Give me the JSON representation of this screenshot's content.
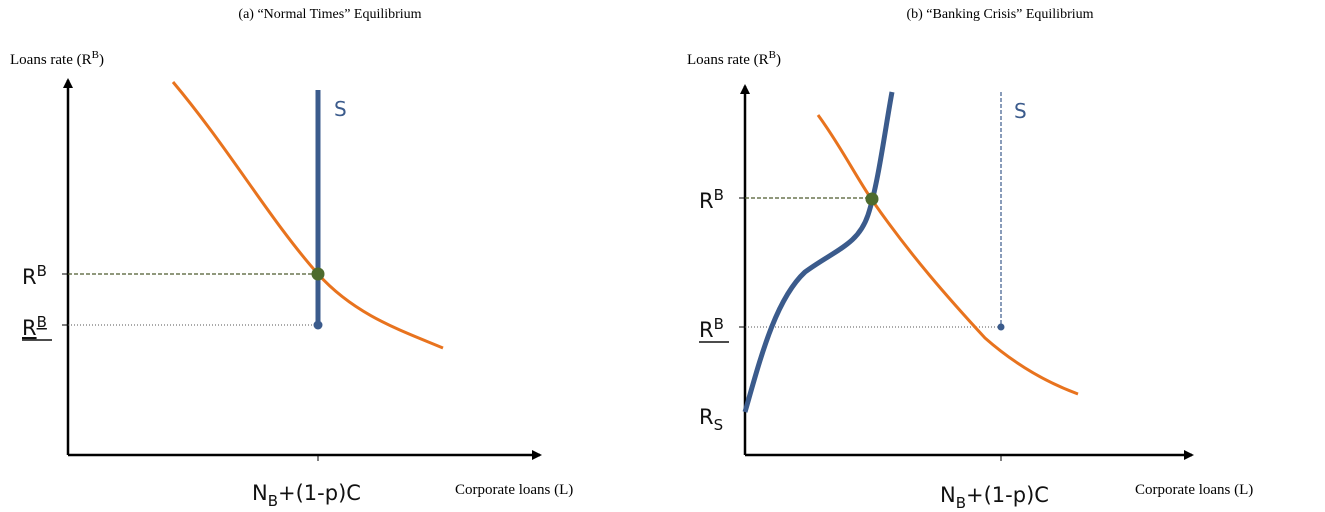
{
  "panels": [
    {
      "caption": "(a)  “Normal Times” Equilibrium",
      "y_label": {
        "text": "Loans rate (R",
        "sup": "B",
        "close": ")"
      },
      "x_label": "Corporate loans (L)",
      "supply_label": "S",
      "rate_label": {
        "base": "R",
        "sup": "B"
      },
      "min_rate_label": {
        "base": "R",
        "sup": "B"
      },
      "quantity_label": {
        "base": "N",
        "sub": "B",
        "rest": "+(1-p)C"
      }
    },
    {
      "caption": "(b)  “Banking Crisis” Equilibrium",
      "y_label": {
        "text": "Loans rate (R",
        "sup": "B",
        "close": ")"
      },
      "x_label": "Corporate loans (L)",
      "supply_label": "S",
      "rate_label": {
        "base": "R",
        "sup": "B"
      },
      "min_rate_label": {
        "base": "R",
        "sup": "B"
      },
      "safe_rate_label": {
        "base": "R",
        "sub": "S"
      },
      "quantity_label": {
        "base": "N",
        "sub": "B",
        "rest": "+(1-p)C"
      }
    }
  ]
}
